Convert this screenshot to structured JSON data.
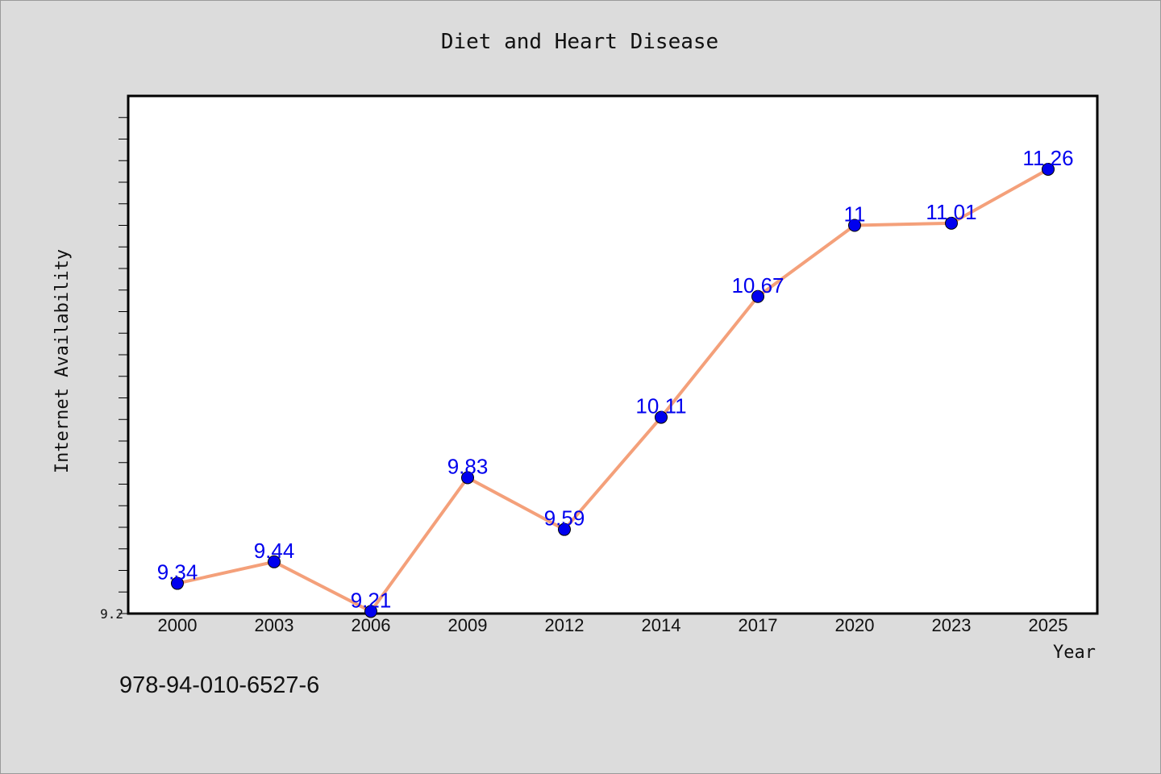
{
  "footer_code": "978-94-010-6527-6",
  "colors": {
    "background": "#dcdcdc",
    "plot_background": "#ffffff",
    "line": "#f4a07a",
    "marker": "#0000ee",
    "data_label": "#0000ee"
  },
  "chart_data": {
    "type": "line",
    "title": "Diet and Heart Disease",
    "xlabel": "Year",
    "ylabel": "Internet Availability",
    "categories": [
      "2000",
      "2003",
      "2006",
      "2009",
      "2012",
      "2014",
      "2017",
      "2020",
      "2023",
      "2025"
    ],
    "series": [
      {
        "values": [
          9.34,
          9.44,
          9.21,
          9.83,
          9.59,
          10.11,
          10.67,
          11,
          11.01,
          11.26
        ],
        "labels": [
          "9.34",
          "9.44",
          "9.21",
          "9.83",
          "9.59",
          "10.11",
          "10.67",
          "11",
          "11.01",
          "11.26"
        ]
      }
    ],
    "ylim": [
      9.2,
      11.6
    ],
    "y_tick_labels": [
      "9.2"
    ],
    "grid": false,
    "legend": "none"
  }
}
